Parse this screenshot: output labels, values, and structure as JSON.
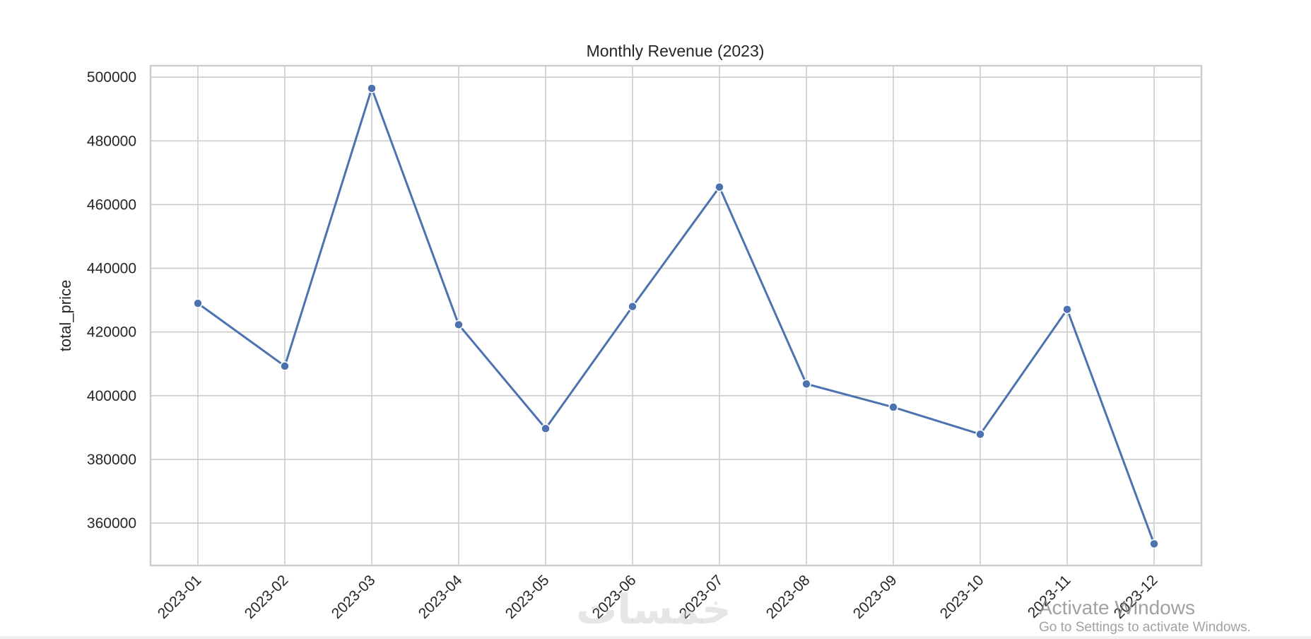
{
  "chart_data": {
    "type": "line",
    "title": "Monthly Revenue (2023)",
    "xlabel": "",
    "ylabel": "total_price",
    "categories": [
      "2023-01",
      "2023-02",
      "2023-03",
      "2023-04",
      "2023-05",
      "2023-06",
      "2023-07",
      "2023-08",
      "2023-09",
      "2023-10",
      "2023-11",
      "2023-12"
    ],
    "values": [
      429000,
      409300,
      496500,
      422300,
      389700,
      428000,
      465500,
      403700,
      396400,
      387900,
      427100,
      353500
    ],
    "yticks": [
      360000,
      380000,
      400000,
      420000,
      440000,
      460000,
      480000,
      500000
    ],
    "ylim": [
      346700,
      503600
    ],
    "grid": true,
    "legend": "none",
    "line_color": "#4c72b0",
    "grid_color": "#cccccc"
  },
  "overlay": {
    "watermark_text": "خمسات",
    "activation_title": "Activate Windows",
    "activation_sub": "Go to Settings to activate Windows."
  }
}
